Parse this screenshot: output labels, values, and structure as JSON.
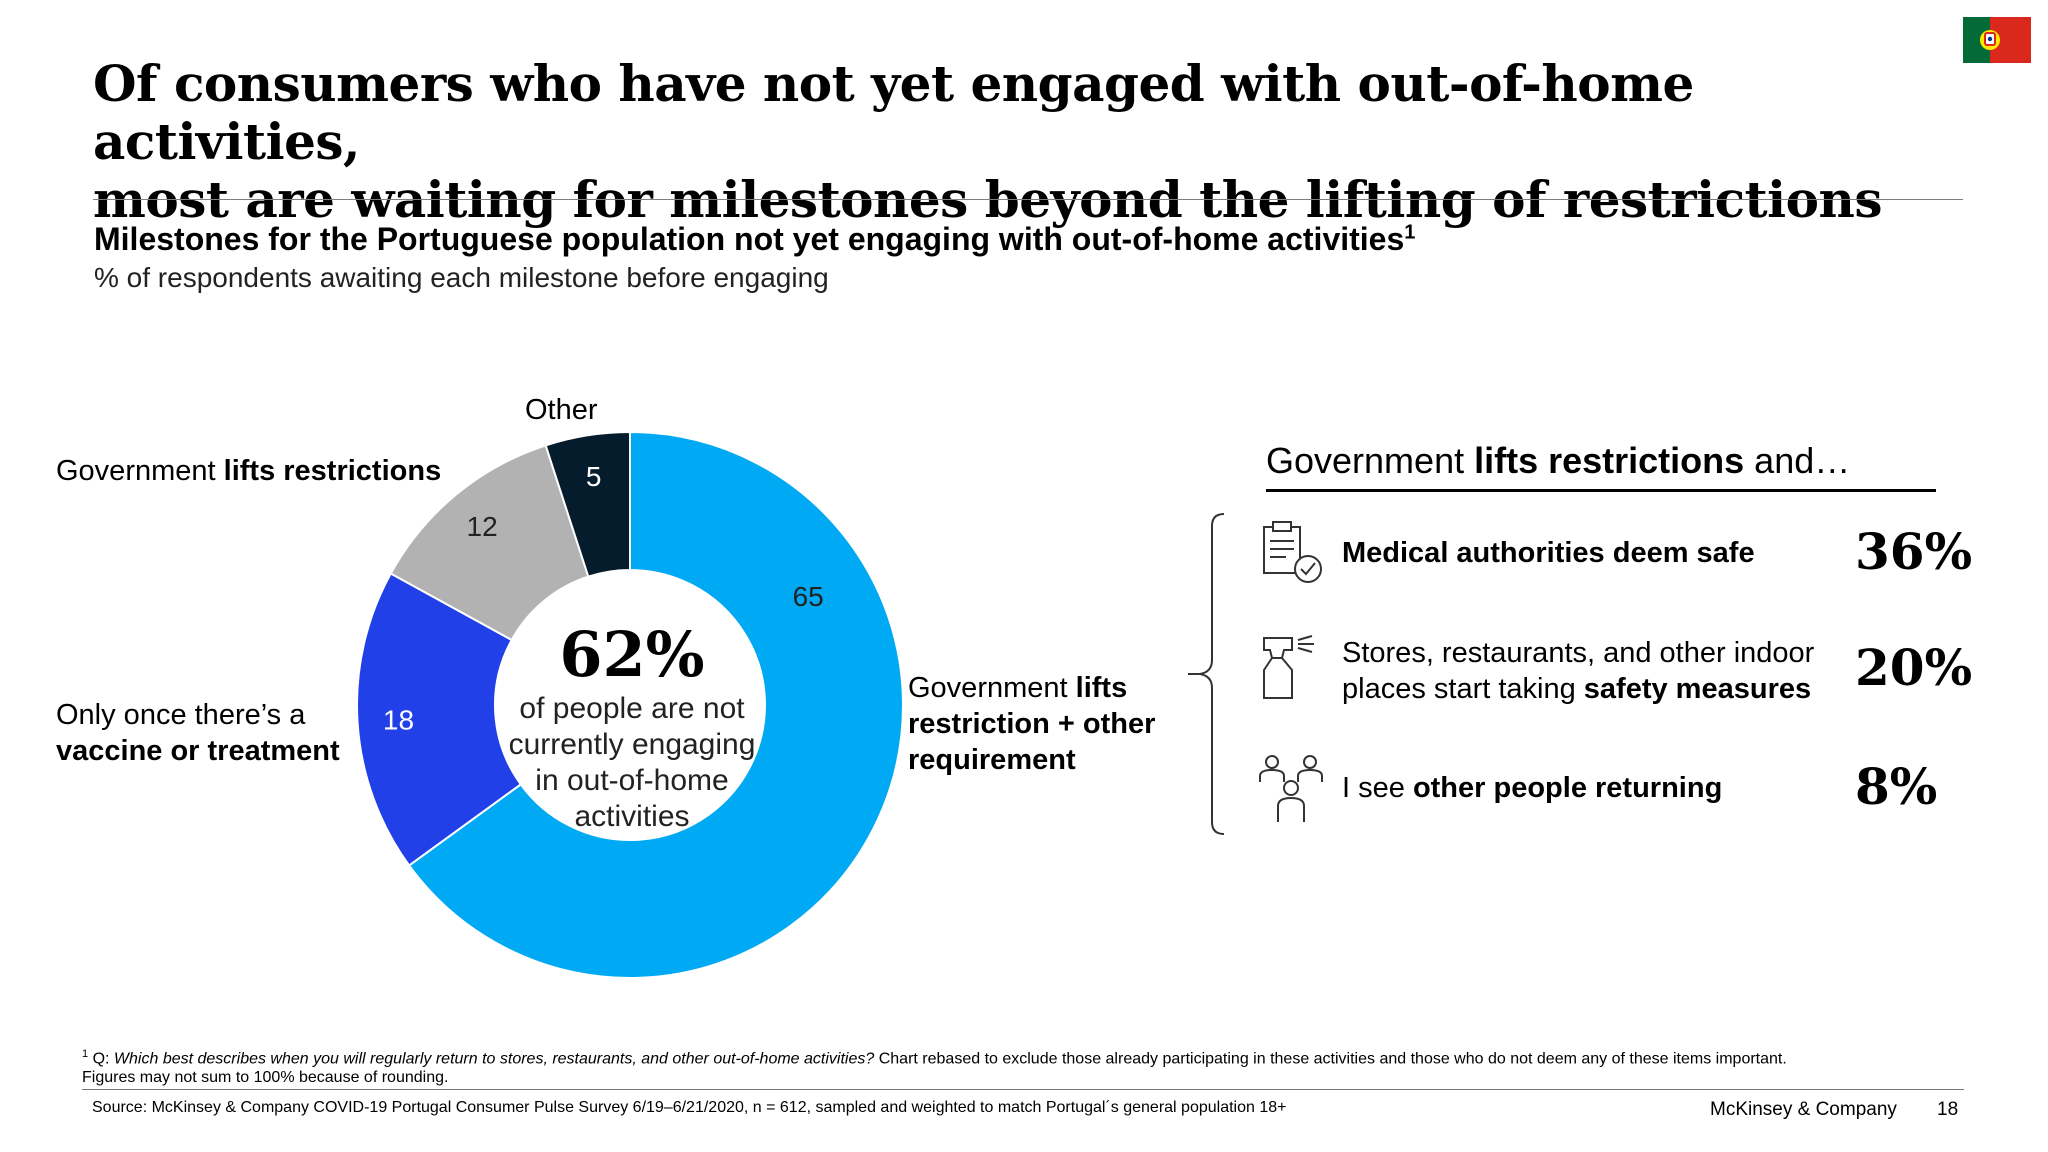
{
  "title": {
    "line1": "Of consumers who have not yet engaged with out-of-home activities,",
    "line2": "most are waiting for milestones beyond the lifting of restrictions"
  },
  "subtitle": "Milestones for the Portuguese population not yet engaging with out-of-home activities",
  "subtitle_footnote_ref": "1",
  "units": "% of respondents awaiting each milestone before engaging",
  "chart_data": {
    "type": "pie",
    "donut": true,
    "slices": [
      {
        "label": "Government lifts restriction + other requirement",
        "value": 65,
        "value_label": "65",
        "color": "#00A9F4"
      },
      {
        "label": "Only once there’s a vaccine or treatment",
        "value": 18,
        "value_label": "18",
        "color": "#2140E8"
      },
      {
        "label": "Government lifts restrictions",
        "value": 12,
        "value_label": "12",
        "color": "#B2B2B2"
      },
      {
        "label": "Other",
        "value": 5,
        "value_label": "5",
        "color": "#051C2C"
      }
    ],
    "start": "12 o'clock",
    "direction": "clockwise",
    "center": {
      "value": "62%",
      "text_lines": [
        "of people are not",
        "currently engaging",
        "in out-of-home",
        "activities"
      ]
    }
  },
  "labels": {
    "other": "Other",
    "gov_normal": "Government ",
    "gov_bold": "lifts restrictions",
    "vac_line1": "Only once there’s a",
    "vac_line2": "vaccine or treatment",
    "plus_l1_normal": "Government ",
    "plus_l1_bold": "lifts",
    "plus_l2": "restriction + other",
    "plus_l3": "requirement"
  },
  "right_panel": {
    "heading_normal": "Government ",
    "heading_bold": "lifts restrictions",
    "heading_tail": " and…",
    "items": [
      {
        "icon": "clipboard-check-icon",
        "bold": "Medical authorities deem safe",
        "pct": "36%"
      },
      {
        "icon": "spray-bottle-icon",
        "line1": "Stores, restaurants, and other indoor",
        "line2_normal": "places start taking ",
        "line2_bold": "safety measures",
        "pct": "20%"
      },
      {
        "icon": "people-group-icon",
        "normal": "I see ",
        "bold": "other people returning",
        "pct": "8%"
      }
    ]
  },
  "footnote": {
    "marker": "1",
    "q_label": "Q: ",
    "question": "Which best describes when you will regularly return to stores, restaurants, and other out-of-home activities?",
    "rest": " Chart rebased to exclude those already participating in these activities and those who do not deem any of these items important.",
    "line2": "Figures may not sum to 100% because of rounding."
  },
  "source": "Source: McKinsey & Company COVID-19 Portugal Consumer Pulse Survey 6/19–6/21/2020, n = 612, sampled and weighted to match Portugal´s general population 18+",
  "brand": "McKinsey & Company",
  "page_number": "18",
  "colors": {
    "accent_light_blue": "#00A9F4",
    "accent_blue": "#2140E8",
    "grey": "#B2B2B2",
    "navy": "#051C2C",
    "flag_green": "#046A38",
    "flag_red": "#DA291C"
  }
}
